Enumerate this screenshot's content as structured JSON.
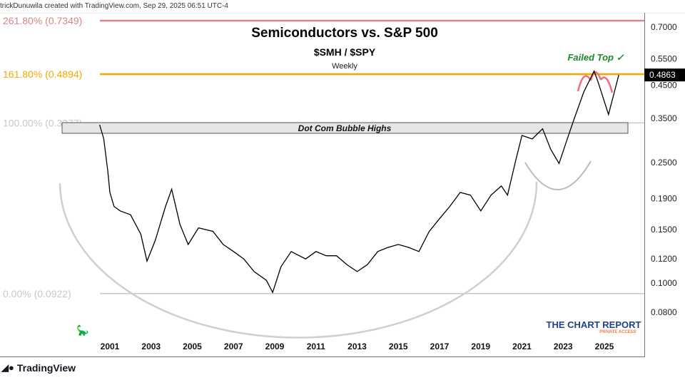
{
  "header": {
    "attribution": "trickDunuwila created with TradingView.com, Sep 29, 2025 06:51 UTC-4"
  },
  "footer": {
    "brand": "TradingView"
  },
  "watermark": {
    "line1": "THE CHART REPORT",
    "line2": "PRIVATE ACCESS"
  },
  "chart_data": {
    "type": "line",
    "title": "Semiconductors vs. S&P 500",
    "subtitle": "$SMH / $SPY",
    "interval": "Weekly",
    "y_scale": "log",
    "ylim": [
      0.066,
      0.8
    ],
    "xlim": [
      1998.4,
      2026.9
    ],
    "x_ticks": [
      "2001",
      "2003",
      "2005",
      "2007",
      "2009",
      "2011",
      "2013",
      "2015",
      "2017",
      "2019",
      "2021",
      "2023",
      "2025"
    ],
    "y_ticks": [
      "0.7000",
      "0.5500",
      "0.4500",
      "0.3500",
      "0.2500",
      "0.1900",
      "0.1500",
      "0.1200",
      "0.1000",
      "0.0800"
    ],
    "last_value": "0.4863",
    "line_color": "#000000",
    "fib_levels": [
      {
        "label": "261.80% (0.7349)",
        "value": 0.7349,
        "color": "#d9848b"
      },
      {
        "label": "161.80% (0.4894)",
        "value": 0.4894,
        "color": "#f5a800"
      },
      {
        "label": "100.00% (0.3377)",
        "value": 0.3377,
        "color": "#c8c8c8"
      },
      {
        "label": "0.00% (0.0922)",
        "value": 0.0922,
        "color": "#c8c8c8"
      }
    ],
    "annotations": {
      "zone": "Dot Com Bubble Highs",
      "failed_top": "Failed Top ✓"
    },
    "series": [
      {
        "x": [
          2000.5,
          2000.7,
          2000.9,
          2001.0,
          2001.2,
          2001.5,
          2002.0,
          2002.5,
          2002.8,
          2003.2,
          2003.7,
          2004.0,
          2004.4,
          2004.8,
          2005.3,
          2006.0,
          2006.5,
          2007.0,
          2007.5,
          2008.0,
          2008.6,
          2008.9,
          2009.3,
          2009.8,
          2010.5,
          2011.0,
          2011.5,
          2012.0,
          2012.5,
          2013.0,
          2013.5,
          2014.0,
          2014.5,
          2015.0,
          2015.5,
          2016.0,
          2016.5,
          2017.0,
          2017.5,
          2018.0,
          2018.5,
          2019.0,
          2019.5,
          2020.0,
          2020.3,
          2020.7,
          2021.0,
          2021.5,
          2022.0,
          2022.4,
          2022.8,
          2023.2,
          2023.5,
          2024.0,
          2024.5,
          2024.7,
          2025.2,
          2025.7
        ],
        "y": [
          0.333,
          0.3,
          0.234,
          0.199,
          0.179,
          0.173,
          0.168,
          0.145,
          0.118,
          0.138,
          0.179,
          0.204,
          0.156,
          0.134,
          0.152,
          0.148,
          0.134,
          0.127,
          0.12,
          0.109,
          0.102,
          0.093,
          0.113,
          0.127,
          0.12,
          0.127,
          0.123,
          0.123,
          0.115,
          0.109,
          0.115,
          0.127,
          0.131,
          0.134,
          0.131,
          0.127,
          0.148,
          0.163,
          0.179,
          0.199,
          0.195,
          0.173,
          0.195,
          0.209,
          0.195,
          0.254,
          0.307,
          0.299,
          0.323,
          0.276,
          0.248,
          0.299,
          0.343,
          0.427,
          0.501,
          0.46,
          0.36,
          0.4863
        ]
      }
    ]
  }
}
